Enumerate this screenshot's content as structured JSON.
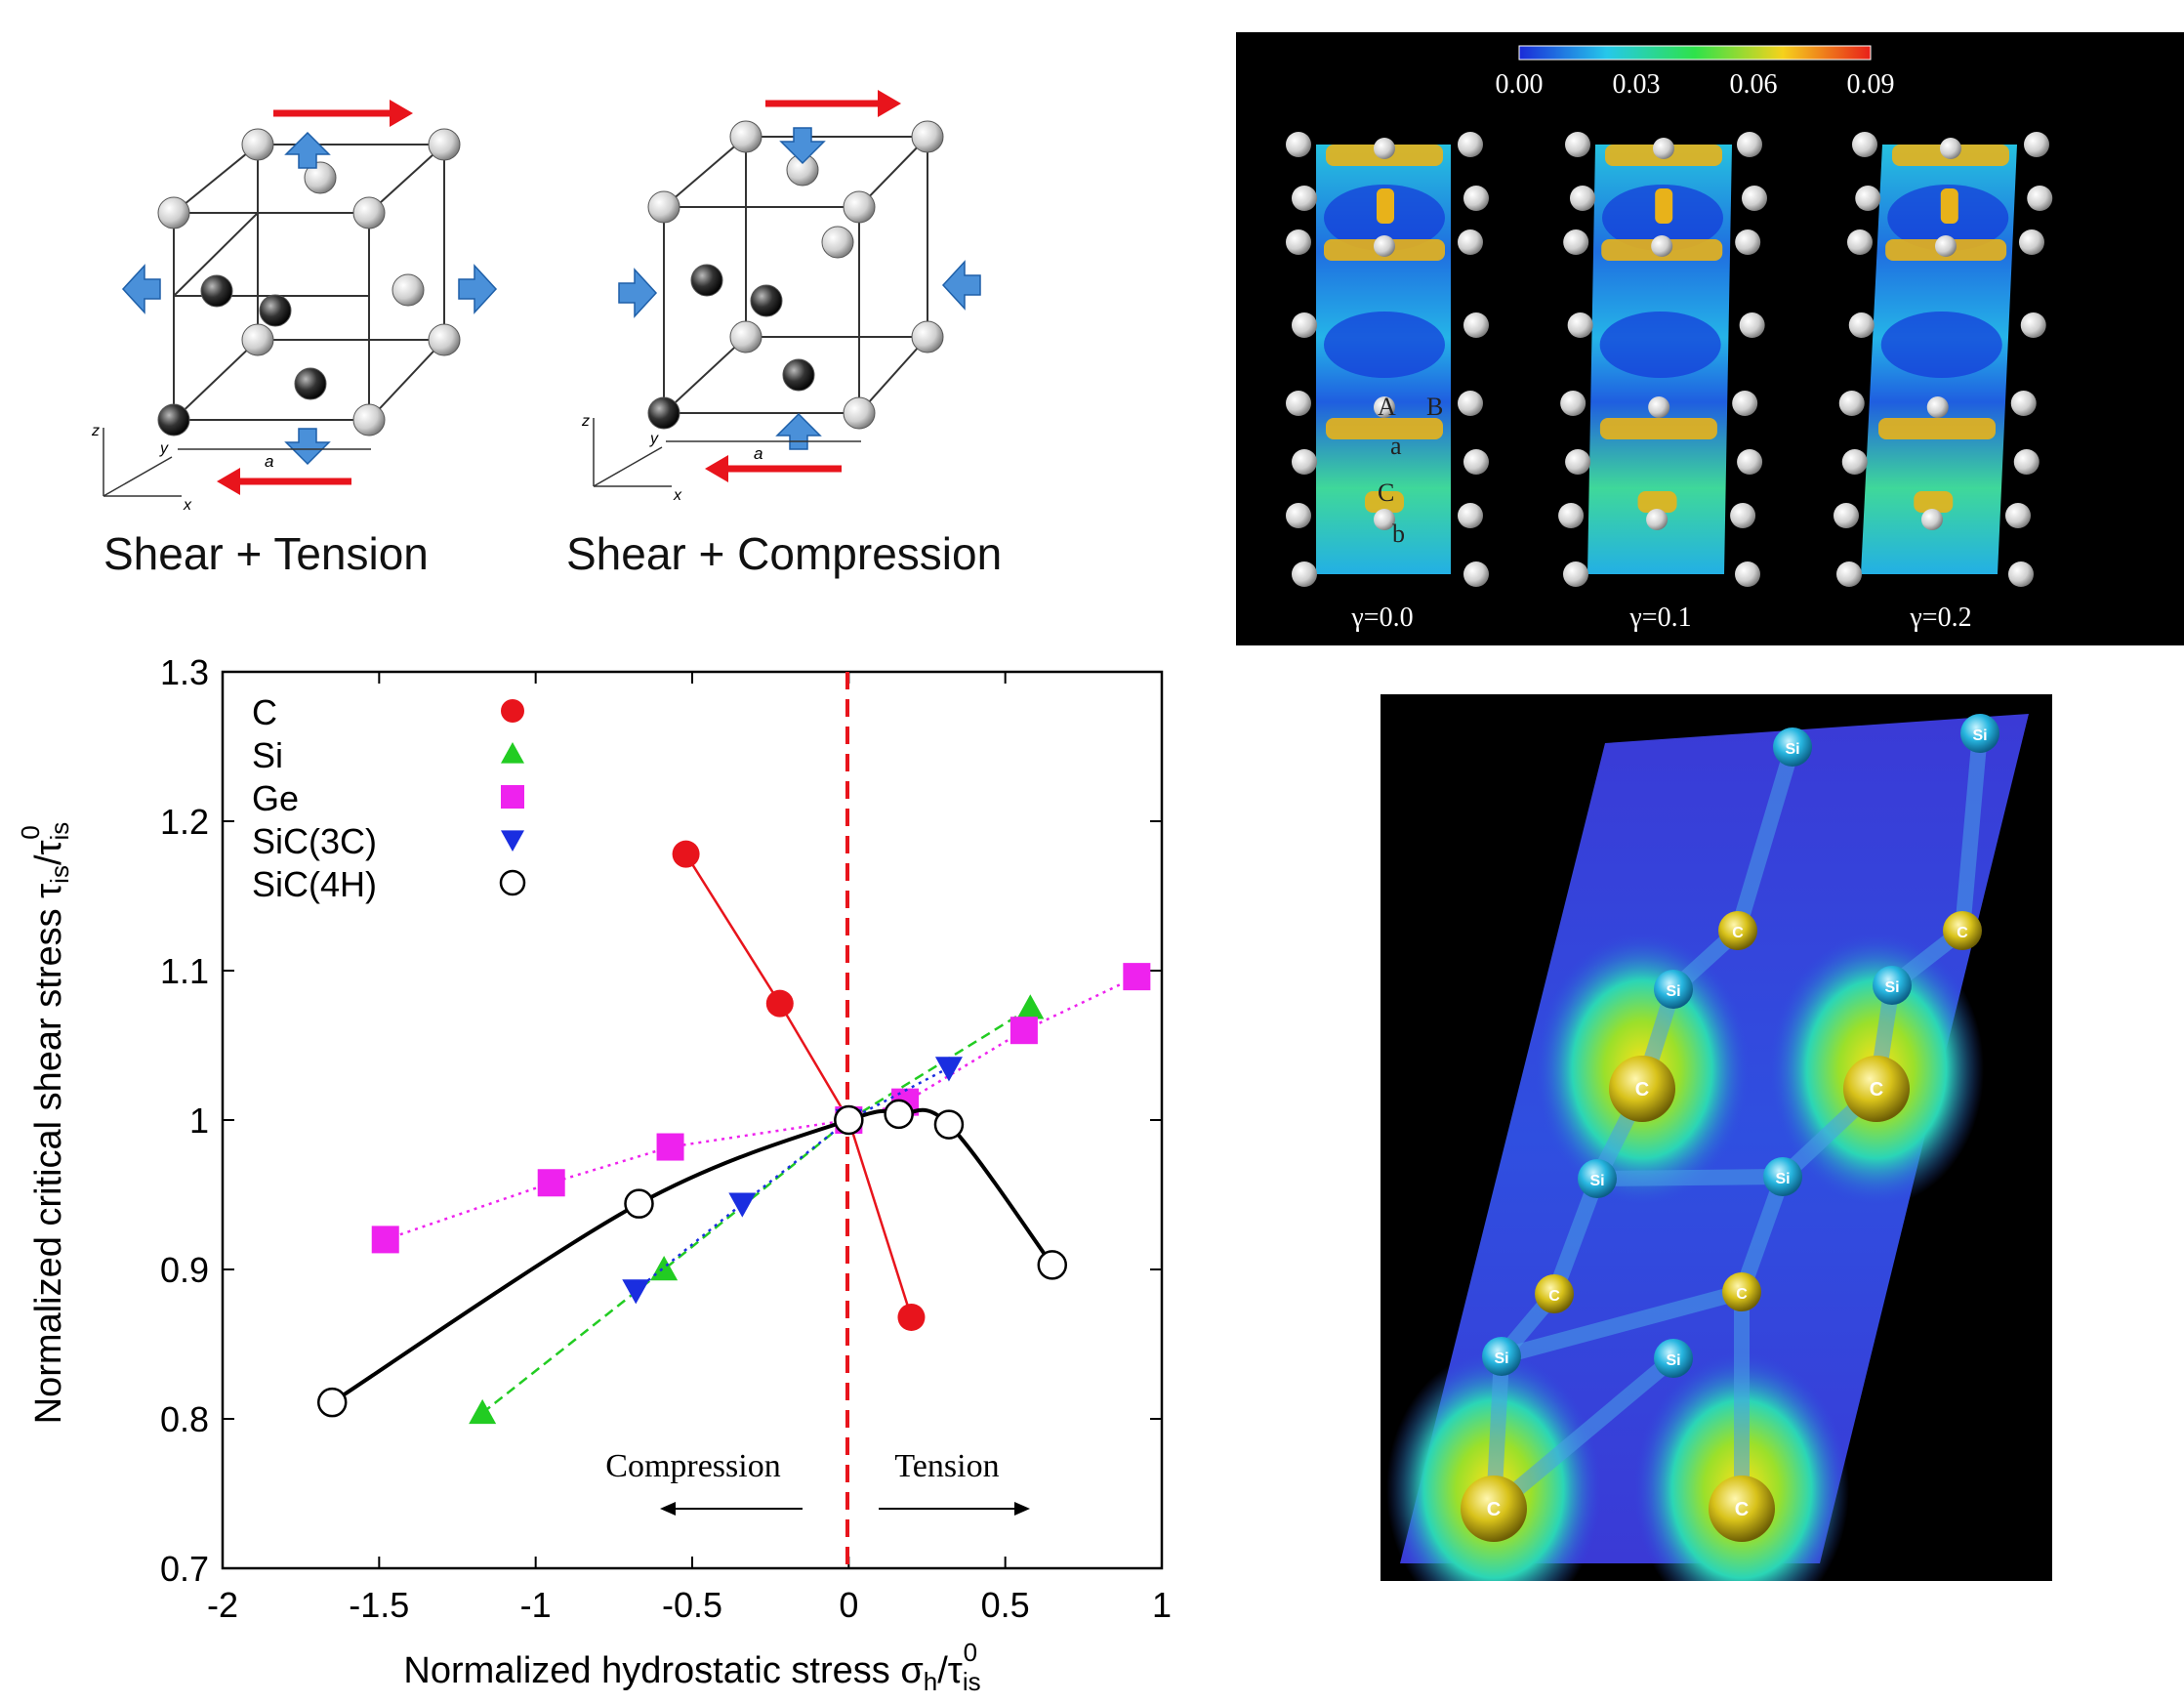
{
  "cubes": {
    "left_caption": "Shear + Tension",
    "right_caption": "Shear + Compression",
    "axis_z": "z",
    "axis_y": "y",
    "axis_x": "x",
    "lattice_label": "a",
    "arrow_color": "#e8141c",
    "pressure_arrow_color": "#4a90d9"
  },
  "density_panel": {
    "colorbar_ticks": [
      "0.00",
      "0.03",
      "0.06",
      "0.09"
    ],
    "strain_labels": [
      "γ=0.0",
      "γ=0.1",
      "γ=0.2"
    ],
    "site_labels": [
      "A",
      "B",
      "a",
      "C",
      "b"
    ]
  },
  "bond_panel": {
    "atom_labels": [
      "Si",
      "C"
    ]
  },
  "chart_data": {
    "type": "scatter",
    "xlabel": "Normalized hydrostatic stress σh/τis0",
    "ylabel": "Normalized critical shear stress τis/τis0",
    "xlim": [
      -2,
      1
    ],
    "ylim": [
      0.7,
      1.3
    ],
    "xticks": [
      "-2",
      "-1.5",
      "-1",
      "-0.5",
      "0",
      "0.5",
      "1"
    ],
    "yticks": [
      "0.7",
      "0.8",
      "0.9",
      "1",
      "1.1",
      "1.2",
      "1.3"
    ],
    "legend_position": "top-left",
    "annotations": [
      "Compression",
      "Tension"
    ],
    "series": [
      {
        "name": "C",
        "color": "#e8141c",
        "marker": "circle-filled",
        "line": "solid",
        "x": [
          -0.52,
          -0.22,
          0.0,
          0.2
        ],
        "y": [
          1.178,
          1.078,
          1.0,
          0.868
        ]
      },
      {
        "name": "Si",
        "color": "#22cc22",
        "marker": "triangle-up",
        "line": "dashed",
        "x": [
          -1.17,
          -0.59,
          0.0,
          0.58
        ],
        "y": [
          0.804,
          0.9,
          1.0,
          1.075
        ]
      },
      {
        "name": "Ge",
        "color": "#ee22ee",
        "marker": "square",
        "line": "dotted",
        "x": [
          -1.48,
          -0.95,
          -0.57,
          0.0,
          0.18,
          0.56,
          0.92
        ],
        "y": [
          0.92,
          0.958,
          0.982,
          1.0,
          1.012,
          1.06,
          1.096
        ]
      },
      {
        "name": "SiC(3C)",
        "color": "#1a2ee0",
        "marker": "triangle-down",
        "line": "dotted",
        "x": [
          -0.68,
          -0.34,
          0.0,
          0.32
        ],
        "y": [
          0.886,
          0.944,
          1.0,
          1.035
        ]
      },
      {
        "name": "SiC(4H)",
        "color": "#000000",
        "marker": "circle-open",
        "line": "smooth",
        "x": [
          -1.65,
          -0.67,
          0.0,
          0.16,
          0.32,
          0.65
        ],
        "y": [
          0.811,
          0.944,
          1.0,
          1.004,
          0.997,
          0.903
        ]
      }
    ]
  }
}
